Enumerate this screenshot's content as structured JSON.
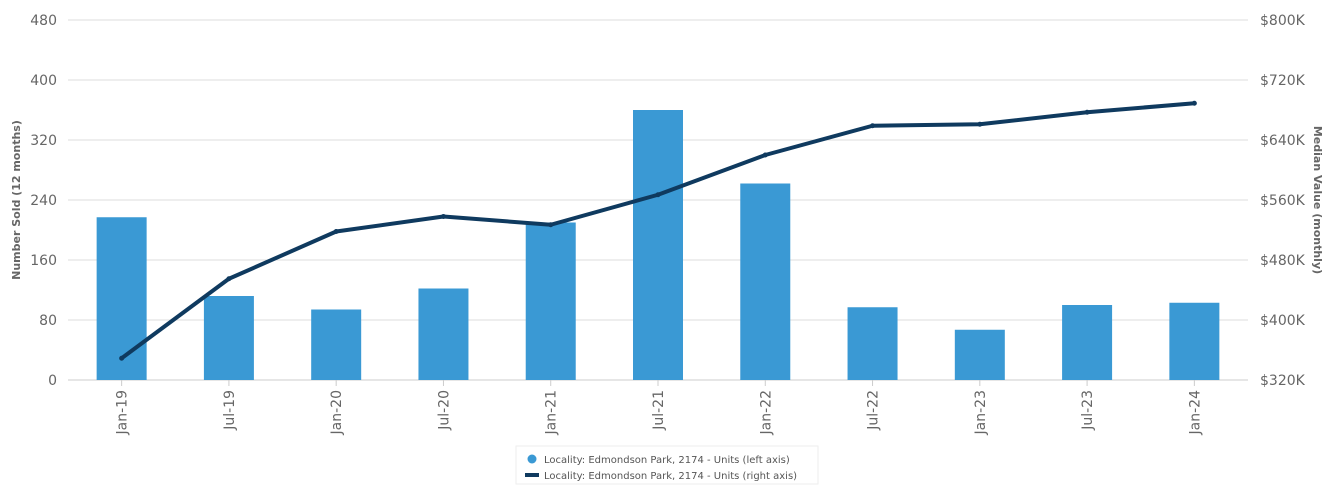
{
  "chart_data": {
    "type": "bar",
    "categories": [
      "Jan-19",
      "Jul-19",
      "Jan-20",
      "Jul-20",
      "Jan-21",
      "Jul-21",
      "Jan-22",
      "Jul-22",
      "Jan-23",
      "Jul-23",
      "Jan-24"
    ],
    "series": [
      {
        "name": "Locality: Edmondson Park, 2174 - Units (left axis)",
        "type": "bar",
        "axis": "left",
        "color": "#3a99d4",
        "values": [
          217,
          112,
          94,
          122,
          210,
          360,
          262,
          97,
          67,
          100,
          103
        ]
      },
      {
        "name": "Locality: Edmondson Park, 2174 - Units (right axis)",
        "type": "line",
        "axis": "right",
        "color": "#0f3a5f",
        "values": [
          349000,
          455000,
          518000,
          538000,
          527000,
          567000,
          620000,
          659000,
          661000,
          677000,
          689000
        ]
      }
    ],
    "ylabel": "Number Sold (12 months)",
    "y2label": "Median Value (monthly)",
    "ylim": [
      0,
      480
    ],
    "y2lim": [
      320000,
      800000
    ],
    "yticks": [
      "0",
      "80",
      "160",
      "240",
      "320",
      "400",
      "480"
    ],
    "y2ticks": [
      "$320K",
      "$400K",
      "$480K",
      "$560K",
      "$640K",
      "$720K",
      "$800K"
    ],
    "grid": true,
    "legend_position": "bottom-center"
  }
}
